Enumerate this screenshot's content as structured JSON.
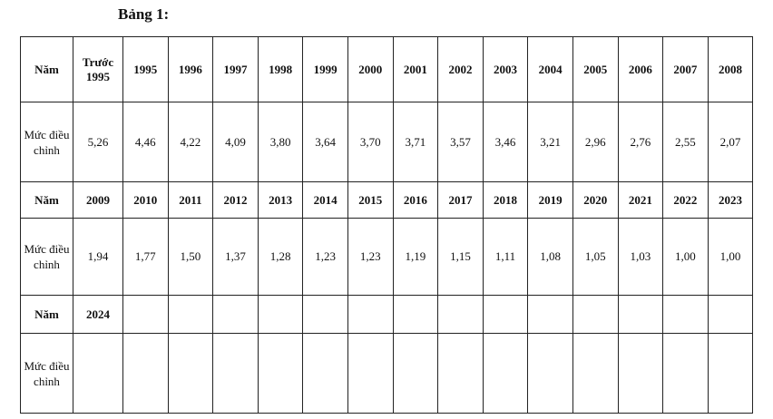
{
  "header": {
    "title": "Bảng 1:"
  },
  "table": {
    "rows": [
      [
        "Năm",
        "Trước 1995",
        "1995",
        "1996",
        "1997",
        "1998",
        "1999",
        "2000",
        "2001",
        "2002",
        "2003",
        "2004",
        "2005",
        "2006",
        "2007",
        "2008"
      ],
      [
        "Mức điều chỉnh",
        "5,26",
        "4,46",
        "4,22",
        "4,09",
        "3,80",
        "3,64",
        "3,70",
        "3,71",
        "3,57",
        "3,46",
        "3,21",
        "2,96",
        "2,76",
        "2,55",
        "2,07"
      ],
      [
        "Năm",
        "2009",
        "2010",
        "2011",
        "2012",
        "2013",
        "2014",
        "2015",
        "2016",
        "2017",
        "2018",
        "2019",
        "2020",
        "2021",
        "2022",
        "2023"
      ],
      [
        "Mức điều chỉnh",
        "1,94",
        "1,77",
        "1,50",
        "1,37",
        "1,28",
        "1,23",
        "1,23",
        "1,19",
        "1,15",
        "1,11",
        "1,08",
        "1,05",
        "1,03",
        "1,00",
        "1,00"
      ],
      [
        "Năm",
        "2024"
      ],
      [
        "Mức điều chỉnh"
      ]
    ]
  }
}
